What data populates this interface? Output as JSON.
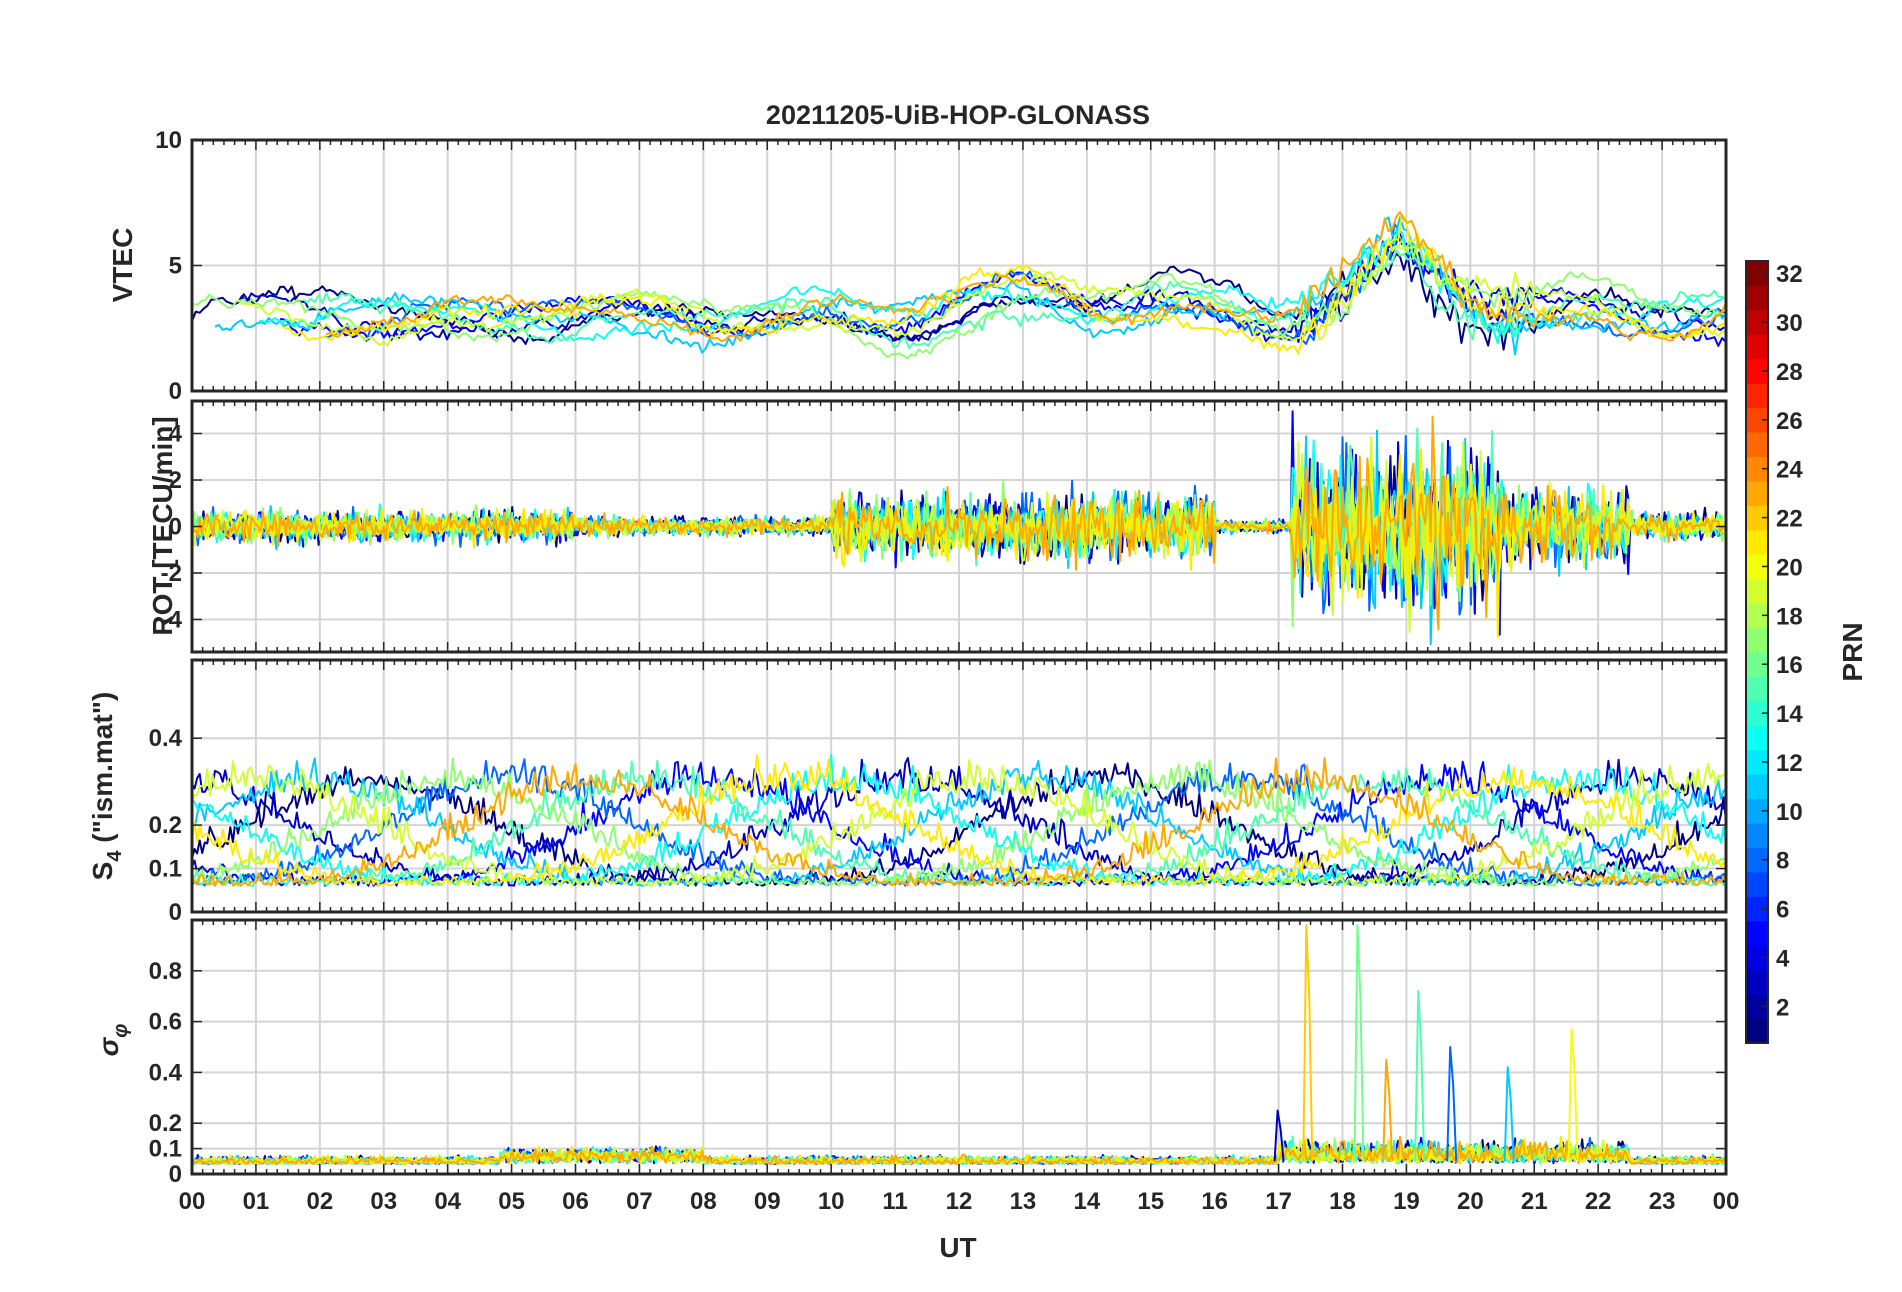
{
  "chart_data": {
    "type": "line",
    "title": "20211205-UiB-HOP-GLONASS",
    "xlabel": "UT",
    "x_tick_labels": [
      "00",
      "01",
      "02",
      "03",
      "04",
      "05",
      "06",
      "07",
      "08",
      "09",
      "10",
      "11",
      "12",
      "13",
      "14",
      "15",
      "16",
      "17",
      "18",
      "19",
      "20",
      "21",
      "22",
      "23",
      "00"
    ],
    "xlim_hours": [
      0,
      24
    ],
    "grid": true,
    "colorbar": {
      "label": "PRN",
      "colormap": "jet",
      "range": [
        1,
        32
      ],
      "tick_labels": [
        "2",
        "4",
        "6",
        "8",
        "10",
        "12",
        "14",
        "16",
        "18",
        "20",
        "22",
        "24",
        "26",
        "28",
        "30",
        "32"
      ]
    },
    "panels": [
      {
        "id": "vtec",
        "ylabel": "VTEC",
        "ylim": [
          0,
          10
        ],
        "yticks": [
          0,
          5,
          10
        ],
        "ytick_labels": [
          "0",
          "5",
          "10"
        ],
        "baseline": 3.0,
        "segments": [
          {
            "start": 0,
            "end": 24,
            "base": 2.8,
            "amp": 1.4,
            "noise": 0.5
          },
          {
            "start": 10.5,
            "end": 17.0,
            "base": 3.8,
            "amp": 1.8,
            "noise": 0.8
          },
          {
            "start": 17.3,
            "end": 20.5,
            "base": 5.2,
            "amp": 2.5,
            "noise": 1.2
          },
          {
            "start": 20.5,
            "end": 24,
            "base": 3.0,
            "amp": 1.5,
            "noise": 0.6
          }
        ]
      },
      {
        "id": "rot",
        "ylabel": "ROT [TECU/min]",
        "ylim": [
          -5.4,
          5.4
        ],
        "yticks": [
          -4,
          -2,
          0,
          2,
          4
        ],
        "ytick_labels": [
          "-4",
          "-2",
          "0",
          "2",
          "4"
        ],
        "activity": [
          {
            "start": 0,
            "end": 6,
            "level": 0.5
          },
          {
            "start": 6,
            "end": 10,
            "level": 0.3
          },
          {
            "start": 10,
            "end": 16,
            "level": 1.0
          },
          {
            "start": 16,
            "end": 17.2,
            "level": 0.2
          },
          {
            "start": 17.2,
            "end": 20.5,
            "level": 2.6
          },
          {
            "start": 20.5,
            "end": 22.5,
            "level": 1.2
          },
          {
            "start": 22.5,
            "end": 24,
            "level": 0.4
          }
        ]
      },
      {
        "id": "s4",
        "ylabel_main": "S",
        "ylabel_sub": "4",
        "ylabel_rest": " (\"ism.mat\")",
        "ylim": [
          0,
          0.58
        ],
        "yticks": [
          0,
          0.1,
          0.2,
          0.4
        ],
        "ytick_labels": [
          "0",
          "0.1",
          "0.2",
          "0.4"
        ],
        "baseline": 0.1
      },
      {
        "id": "sigma",
        "ylabel_main": "σ",
        "ylabel_sub": "φ",
        "ylim": [
          0,
          1.0
        ],
        "yticks": [
          0,
          0.1,
          0.2,
          0.4,
          0.6,
          0.8
        ],
        "ytick_labels": [
          "0",
          "0.1",
          "0.2",
          "0.4",
          "0.6",
          "0.8"
        ],
        "baseline": 0.04,
        "spikes": [
          {
            "t": 17.45,
            "value": 0.98
          },
          {
            "t": 18.25,
            "value": 0.98
          },
          {
            "t": 18.7,
            "value": 0.45
          },
          {
            "t": 19.2,
            "value": 0.72
          },
          {
            "t": 19.7,
            "value": 0.5
          },
          {
            "t": 20.6,
            "value": 0.42
          },
          {
            "t": 21.6,
            "value": 0.57
          },
          {
            "t": 17.0,
            "value": 0.25
          }
        ]
      }
    ],
    "series_prns": [
      1,
      3,
      5,
      8,
      11,
      13,
      15,
      17,
      19,
      21,
      23
    ]
  }
}
